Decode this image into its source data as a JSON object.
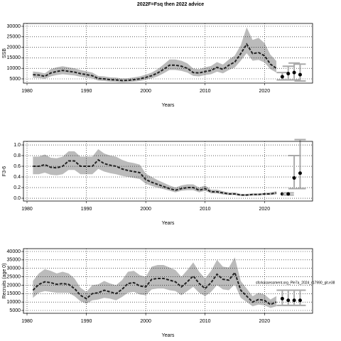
{
  "chart_data": [
    {
      "type": "line",
      "title": "2022F=Fsq then 2022 advice",
      "ylabel": "SSB",
      "xlabel": "Years",
      "xlim": [
        1979.4,
        2028.1
      ],
      "xticks": [
        1980,
        1990,
        2000,
        2010,
        2020
      ],
      "ylim": [
        2970,
        31350
      ],
      "yticks": [
        5000,
        10000,
        15000,
        20000,
        25000,
        30000
      ],
      "grid": true,
      "color": "#222222",
      "band_color": "#bbbbbb",
      "point_color": "#000000",
      "errorbar_color": "#aaaaaa",
      "x": [
        1981,
        1982,
        1983,
        1984,
        1985,
        1986,
        1987,
        1988,
        1989,
        1990,
        1991,
        1992,
        1993,
        1994,
        1995,
        1996,
        1997,
        1998,
        1999,
        2000,
        2001,
        2002,
        2003,
        2004,
        2005,
        2006,
        2007,
        2008,
        2009,
        2010,
        2011,
        2012,
        2013,
        2014,
        2015,
        2016,
        2017,
        2018,
        2019,
        2020,
        2021,
        2022
      ],
      "values": [
        7000,
        6800,
        6200,
        7800,
        8500,
        9000,
        8600,
        8200,
        7500,
        7000,
        6500,
        5200,
        5000,
        4600,
        4500,
        4200,
        4300,
        4600,
        5000,
        5700,
        6500,
        7800,
        9500,
        11500,
        11500,
        11000,
        10000,
        8000,
        7800,
        8500,
        9000,
        10500,
        9500,
        11500,
        13000,
        17000,
        21500,
        17000,
        17500,
        16000,
        12000,
        10000
      ],
      "lower": [
        5500,
        5400,
        5000,
        6200,
        6800,
        7200,
        6900,
        6600,
        6000,
        5600,
        5200,
        4200,
        4000,
        3700,
        3600,
        3400,
        3500,
        3700,
        4000,
        4600,
        5200,
        6200,
        7600,
        9200,
        9200,
        8800,
        8000,
        6400,
        6200,
        6800,
        7200,
        8400,
        7600,
        9200,
        10400,
        13600,
        17200,
        13600,
        14000,
        12800,
        9600,
        8000
      ],
      "upper": [
        8500,
        8200,
        7600,
        9600,
        10500,
        11000,
        10500,
        10000,
        9200,
        8600,
        8000,
        6400,
        6200,
        5700,
        5600,
        5200,
        5300,
        5700,
        6200,
        7000,
        8000,
        9600,
        11800,
        14200,
        14200,
        13600,
        12400,
        9900,
        9600,
        10500,
        11100,
        13000,
        11800,
        14200,
        16100,
        21000,
        29500,
        23500,
        24500,
        22000,
        16500,
        13500
      ],
      "projection": {
        "x": [
          2023,
          2024,
          2025,
          2026
        ],
        "values": [
          6000,
          7500,
          8000,
          7000
        ],
        "lower": [
          4500,
          4500,
          4500,
          4000
        ],
        "upper": [
          8000,
          11000,
          12500,
          12000
        ]
      }
    },
    {
      "type": "line",
      "ylabel": "F3-6",
      "xlabel": "Years",
      "xlim": [
        1979.4,
        2028.1
      ],
      "xticks": [
        1980,
        1990,
        2000,
        2010,
        2020
      ],
      "ylim": [
        -0.053,
        1.067
      ],
      "yticks": [
        {
          "value": 0,
          "label": "0.0"
        },
        0.2,
        0.4,
        0.6,
        0.8,
        {
          "value": 1,
          "label": "1.0"
        }
      ],
      "grid": true,
      "color": "#222222",
      "band_color": "#bbbbbb",
      "point_color": "#000000",
      "errorbar_color": "#aaaaaa",
      "x": [
        1981,
        1982,
        1983,
        1984,
        1985,
        1986,
        1987,
        1988,
        1989,
        1990,
        1991,
        1992,
        1993,
        1994,
        1995,
        1996,
        1997,
        1998,
        1999,
        2000,
        2001,
        2002,
        2003,
        2004,
        2005,
        2006,
        2007,
        2008,
        2009,
        2010,
        2011,
        2012,
        2013,
        2014,
        2015,
        2016,
        2017,
        2018,
        2019,
        2020,
        2021,
        2022
      ],
      "values": [
        0.6,
        0.6,
        0.63,
        0.58,
        0.57,
        0.6,
        0.7,
        0.7,
        0.6,
        0.6,
        0.6,
        0.72,
        0.65,
        0.62,
        0.6,
        0.55,
        0.52,
        0.5,
        0.48,
        0.35,
        0.3,
        0.26,
        0.22,
        0.18,
        0.15,
        0.18,
        0.2,
        0.2,
        0.15,
        0.18,
        0.12,
        0.12,
        0.1,
        0.08,
        0.08,
        0.06,
        0.06,
        0.07,
        0.07,
        0.08,
        0.08,
        0.1
      ],
      "lower": [
        0.45,
        0.45,
        0.48,
        0.44,
        0.43,
        0.45,
        0.53,
        0.53,
        0.45,
        0.45,
        0.45,
        0.55,
        0.5,
        0.47,
        0.45,
        0.42,
        0.4,
        0.38,
        0.36,
        0.27,
        0.23,
        0.2,
        0.17,
        0.14,
        0.11,
        0.14,
        0.15,
        0.15,
        0.11,
        0.14,
        0.09,
        0.09,
        0.07,
        0.06,
        0.06,
        0.04,
        0.04,
        0.05,
        0.05,
        0.06,
        0.06,
        0.07
      ],
      "upper": [
        0.78,
        0.78,
        0.82,
        0.76,
        0.75,
        0.78,
        0.88,
        0.88,
        0.78,
        0.78,
        0.78,
        0.92,
        0.84,
        0.8,
        0.78,
        0.72,
        0.68,
        0.66,
        0.63,
        0.46,
        0.4,
        0.34,
        0.29,
        0.24,
        0.2,
        0.24,
        0.26,
        0.26,
        0.2,
        0.24,
        0.16,
        0.16,
        0.13,
        0.11,
        0.11,
        0.08,
        0.08,
        0.09,
        0.09,
        0.1,
        0.11,
        0.13
      ],
      "projection": {
        "x": [
          2023,
          2024,
          2025,
          2026
        ],
        "values": [
          0.08,
          0.08,
          0.38,
          0.47
        ],
        "lower": [
          null,
          0.06,
          0.18,
          0.18
        ],
        "upper": [
          null,
          0.1,
          0.8,
          1.1
        ]
      }
    },
    {
      "type": "line",
      "ylabel": "Recruits (age 0)",
      "xlabel": "Years",
      "annotation": "sfcrkassessment.org_Ple7a_2024_r17990_git.e38",
      "xlim": [
        1979.4,
        2028.1
      ],
      "xticks": [
        1980,
        1990,
        2000,
        2010,
        2020
      ],
      "ylim": [
        3310,
        41690
      ],
      "yticks": [
        5000,
        10000,
        15000,
        20000,
        25000,
        30000,
        35000,
        40000
      ],
      "grid": true,
      "color": "#222222",
      "band_color": "#bbbbbb",
      "point_color": "#000000",
      "errorbar_color": "#aaaaaa",
      "x": [
        1981,
        1982,
        1983,
        1984,
        1985,
        1986,
        1987,
        1988,
        1989,
        1990,
        1991,
        1992,
        1993,
        1994,
        1995,
        1996,
        1997,
        1998,
        1999,
        2000,
        2001,
        2002,
        2003,
        2004,
        2005,
        2006,
        2007,
        2008,
        2009,
        2010,
        2011,
        2012,
        2013,
        2014,
        2015,
        2016,
        2017,
        2018,
        2019,
        2020,
        2021,
        2022
      ],
      "values": [
        17000,
        20500,
        22000,
        21500,
        20500,
        21000,
        20500,
        18000,
        14000,
        12000,
        15000,
        15500,
        17000,
        16000,
        15000,
        17500,
        21000,
        21500,
        19500,
        19000,
        23500,
        24000,
        24000,
        23000,
        22000,
        19000,
        22000,
        25500,
        21000,
        18000,
        21500,
        26500,
        23500,
        23000,
        27500,
        17000,
        13500,
        10000,
        11500,
        11000,
        8500,
        10000
      ],
      "lower": [
        12500,
        15500,
        16500,
        16000,
        15500,
        15500,
        15500,
        13500,
        10500,
        9000,
        11000,
        11500,
        12500,
        12000,
        11000,
        13000,
        15500,
        16000,
        14500,
        14000,
        17500,
        18000,
        18000,
        17000,
        16500,
        14000,
        16500,
        19000,
        15500,
        13500,
        16000,
        20000,
        17500,
        17000,
        20500,
        12500,
        10000,
        7500,
        8500,
        8000,
        6500,
        7500
      ],
      "upper": [
        22500,
        27000,
        29500,
        28500,
        27000,
        28000,
        27000,
        24000,
        18500,
        16000,
        20000,
        20500,
        22500,
        21000,
        20000,
        23000,
        28000,
        28500,
        26000,
        25000,
        31000,
        32000,
        32000,
        30500,
        29000,
        25000,
        29000,
        33500,
        28000,
        24000,
        28500,
        35000,
        31000,
        30500,
        36500,
        22500,
        18000,
        13500,
        15500,
        14500,
        11500,
        13500
      ],
      "projection": {
        "x": [
          2023,
          2024,
          2025,
          2026
        ],
        "values": [
          12000,
          11000,
          11000,
          11000
        ],
        "lower": [
          8000,
          8000,
          8000,
          8000
        ],
        "upper": [
          17000,
          17000,
          17000,
          17000
        ]
      }
    }
  ]
}
